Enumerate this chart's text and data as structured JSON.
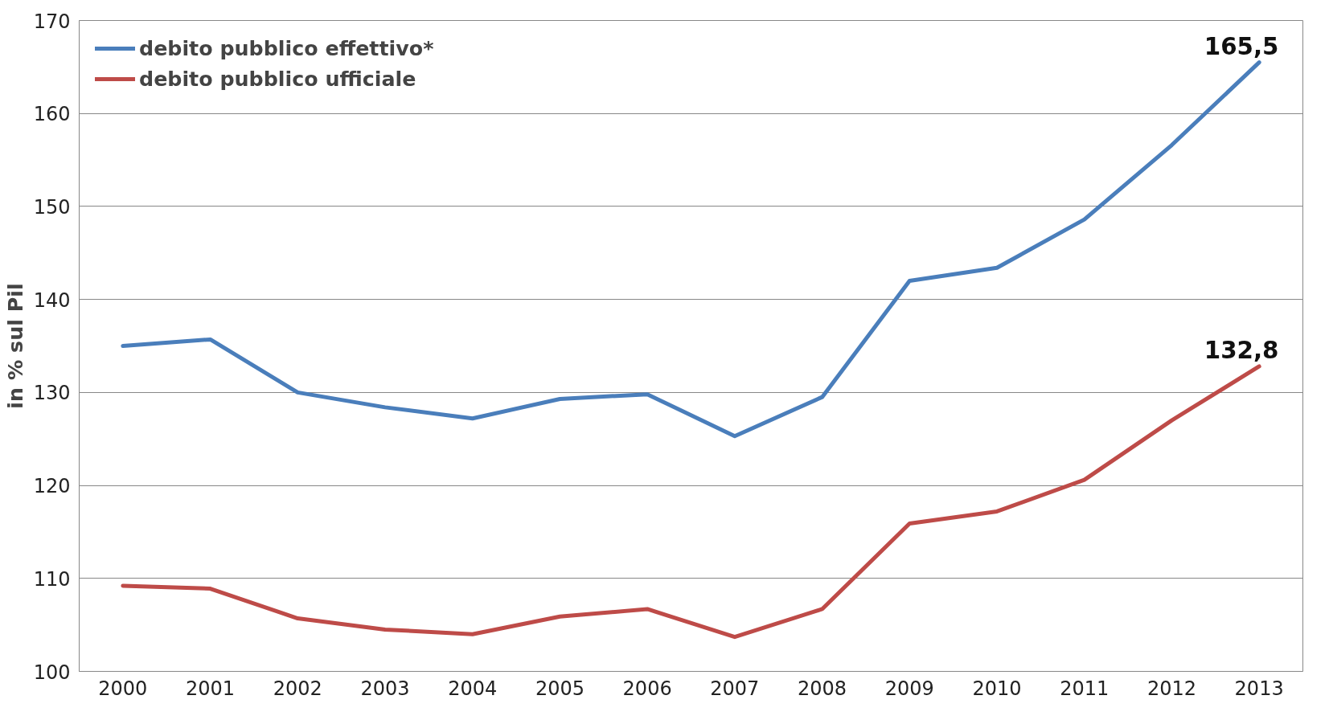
{
  "chart_data": {
    "type": "line",
    "ylabel": "in % sul Pil",
    "categories": [
      "2000",
      "2001",
      "2002",
      "2003",
      "2004",
      "2005",
      "2006",
      "2007",
      "2008",
      "2009",
      "2010",
      "2011",
      "2012",
      "2013"
    ],
    "series": [
      {
        "name": "debito pubblico effettivo*",
        "color": "#4a7ebb",
        "values": [
          135.0,
          135.7,
          130.0,
          128.4,
          127.2,
          129.3,
          129.8,
          125.3,
          129.5,
          142.0,
          143.4,
          148.6,
          156.6,
          165.5
        ],
        "value_labels": [
          null,
          null,
          null,
          null,
          null,
          null,
          null,
          null,
          null,
          null,
          null,
          null,
          null,
          "165,5"
        ]
      },
      {
        "name": "debito pubblico ufficiale",
        "color": "#be4b48",
        "values": [
          109.2,
          108.9,
          105.7,
          104.5,
          104.0,
          105.9,
          106.7,
          103.7,
          106.7,
          115.9,
          117.2,
          120.6,
          127.0,
          132.8
        ],
        "value_labels": [
          null,
          null,
          null,
          null,
          null,
          null,
          null,
          null,
          null,
          null,
          null,
          null,
          null,
          "132,8"
        ]
      }
    ],
    "ylim": [
      100,
      170
    ],
    "yticks": [
      100,
      110,
      120,
      130,
      140,
      150,
      160,
      170
    ],
    "grid": "y",
    "legend": "top left",
    "marker": "none",
    "line_style": "solid"
  }
}
